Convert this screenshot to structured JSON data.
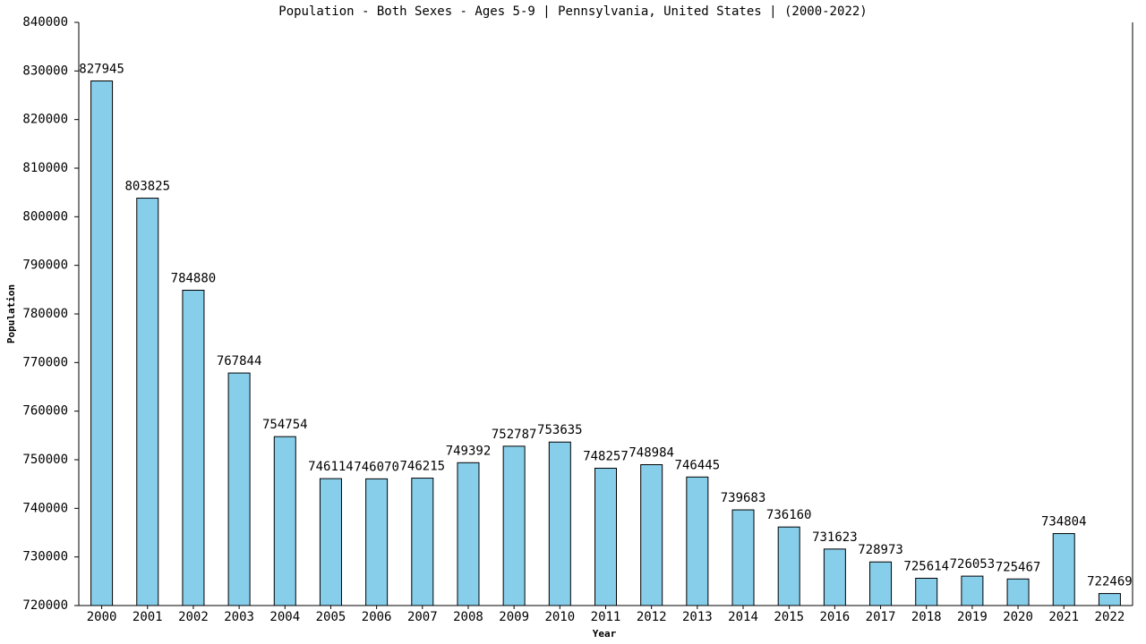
{
  "chart_data": {
    "type": "bar",
    "title": "Population - Both Sexes - Ages 5-9 | Pennsylvania, United States |  (2000-2022)",
    "x_label": "Year",
    "y_label": "Population",
    "categories": [
      "2000",
      "2001",
      "2002",
      "2003",
      "2004",
      "2005",
      "2006",
      "2007",
      "2008",
      "2009",
      "2010",
      "2011",
      "2012",
      "2013",
      "2014",
      "2015",
      "2016",
      "2017",
      "2018",
      "2019",
      "2020",
      "2021",
      "2022"
    ],
    "values": [
      827945,
      803825,
      784880,
      767844,
      754754,
      746114,
      746070,
      746215,
      749392,
      752787,
      753635,
      748257,
      748984,
      746445,
      739683,
      736160,
      731623,
      728973,
      725614,
      726053,
      725467,
      734804,
      722469
    ],
    "color": "#87ceeb",
    "ylim": [
      720000,
      840000
    ],
    "yticks": [
      720000,
      730000,
      740000,
      750000,
      760000,
      770000,
      780000,
      790000,
      800000,
      810000,
      820000,
      830000,
      840000
    ],
    "grid": false
  }
}
